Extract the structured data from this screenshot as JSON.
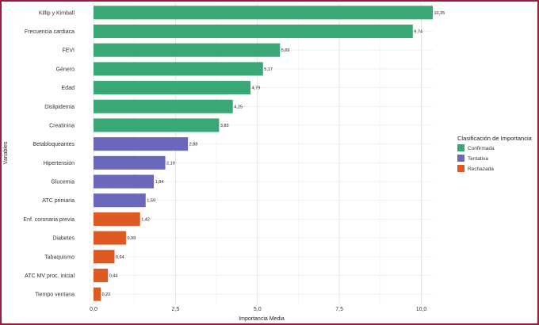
{
  "chart_data": {
    "type": "bar",
    "orientation": "horizontal",
    "xlabel": "Importancia Media",
    "ylabel": "Variables",
    "xlim": [
      0,
      10.35
    ],
    "x_ticks": [
      0,
      2.5,
      5.0,
      7.5,
      10.0
    ],
    "x_tick_labels": [
      "0,0",
      "2,5",
      "5,0",
      "7,5",
      "10,0"
    ],
    "grid": true,
    "legend_position": "right",
    "legend_title": "Clasificación de Importancia",
    "legend": [
      {
        "name": "Confirmada",
        "color": "#3aa876"
      },
      {
        "name": "Tentativa",
        "color": "#6b67bd"
      },
      {
        "name": "Rechazada",
        "color": "#dd5a22"
      }
    ],
    "bars": [
      {
        "label": "Killip y Kimball",
        "value": 10.35,
        "value_label": "10,35",
        "class": "Confirmada"
      },
      {
        "label": "Frecuencia cardiaca",
        "value": 9.74,
        "value_label": "9,74",
        "class": "Confirmada"
      },
      {
        "label": "FEVI",
        "value": 5.69,
        "value_label": "5,69",
        "class": "Confirmada"
      },
      {
        "label": "Género",
        "value": 5.17,
        "value_label": "5,17",
        "class": "Confirmada"
      },
      {
        "label": "Edad",
        "value": 4.79,
        "value_label": "4,79",
        "class": "Confirmada"
      },
      {
        "label": "Dislipidemia",
        "value": 4.25,
        "value_label": "4,25",
        "class": "Confirmada"
      },
      {
        "label": "Creatinina",
        "value": 3.83,
        "value_label": "3,83",
        "class": "Confirmada"
      },
      {
        "label": "Betabloqueantes",
        "value": 2.88,
        "value_label": "2,88",
        "class": "Tentativa"
      },
      {
        "label": "Hipertensión",
        "value": 2.19,
        "value_label": "2,19",
        "class": "Tentativa"
      },
      {
        "label": "Glucemia",
        "value": 1.84,
        "value_label": "1,84",
        "class": "Tentativa"
      },
      {
        "label": "ATC primaria",
        "value": 1.59,
        "value_label": "1,59",
        "class": "Tentativa"
      },
      {
        "label": "Enf. coronaria previa",
        "value": 1.42,
        "value_label": "1,42",
        "class": "Rechazada"
      },
      {
        "label": "Diabetes",
        "value": 0.99,
        "value_label": "0,99",
        "class": "Rechazada"
      },
      {
        "label": "Tabaquismo",
        "value": 0.64,
        "value_label": "0,64",
        "class": "Rechazada"
      },
      {
        "label": "ATC MV proc. inicial",
        "value": 0.44,
        "value_label": "0,44",
        "class": "Rechazada"
      },
      {
        "label": "Tiempo ventana",
        "value": 0.22,
        "value_label": "0,22",
        "class": "Rechazada"
      }
    ]
  }
}
